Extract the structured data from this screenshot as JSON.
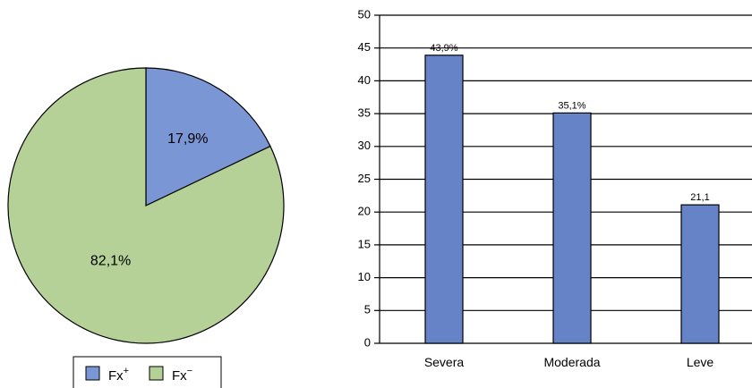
{
  "chart_data": [
    {
      "type": "pie",
      "title": "",
      "slices": [
        {
          "name": "Fx+",
          "value": 17.9,
          "label": "17,9%",
          "color": "#7b96d4"
        },
        {
          "name": "Fx−",
          "value": 82.1,
          "label": "82,1%",
          "color": "#b5d197"
        }
      ],
      "legend": {
        "placement": "bottom",
        "entries": [
          {
            "base": "Fx",
            "sup": "+",
            "color": "#7b96d4"
          },
          {
            "base": "Fx",
            "sup": "−",
            "color": "#b5d197"
          }
        ]
      }
    },
    {
      "type": "bar",
      "title": "",
      "xlabel": "",
      "ylabel": "",
      "categories": [
        "Severa",
        "Moderada",
        "Leve"
      ],
      "values": [
        43.9,
        35.1,
        21.1
      ],
      "data_labels": [
        "43,9%",
        "35,1%",
        "21,1"
      ],
      "ylim": [
        0,
        50
      ],
      "yticks": [
        "0",
        "5",
        "10",
        "15",
        "20",
        "25",
        "30",
        "35",
        "40",
        "45",
        "50"
      ],
      "grid": true,
      "bar_color": "#6683c8"
    }
  ]
}
